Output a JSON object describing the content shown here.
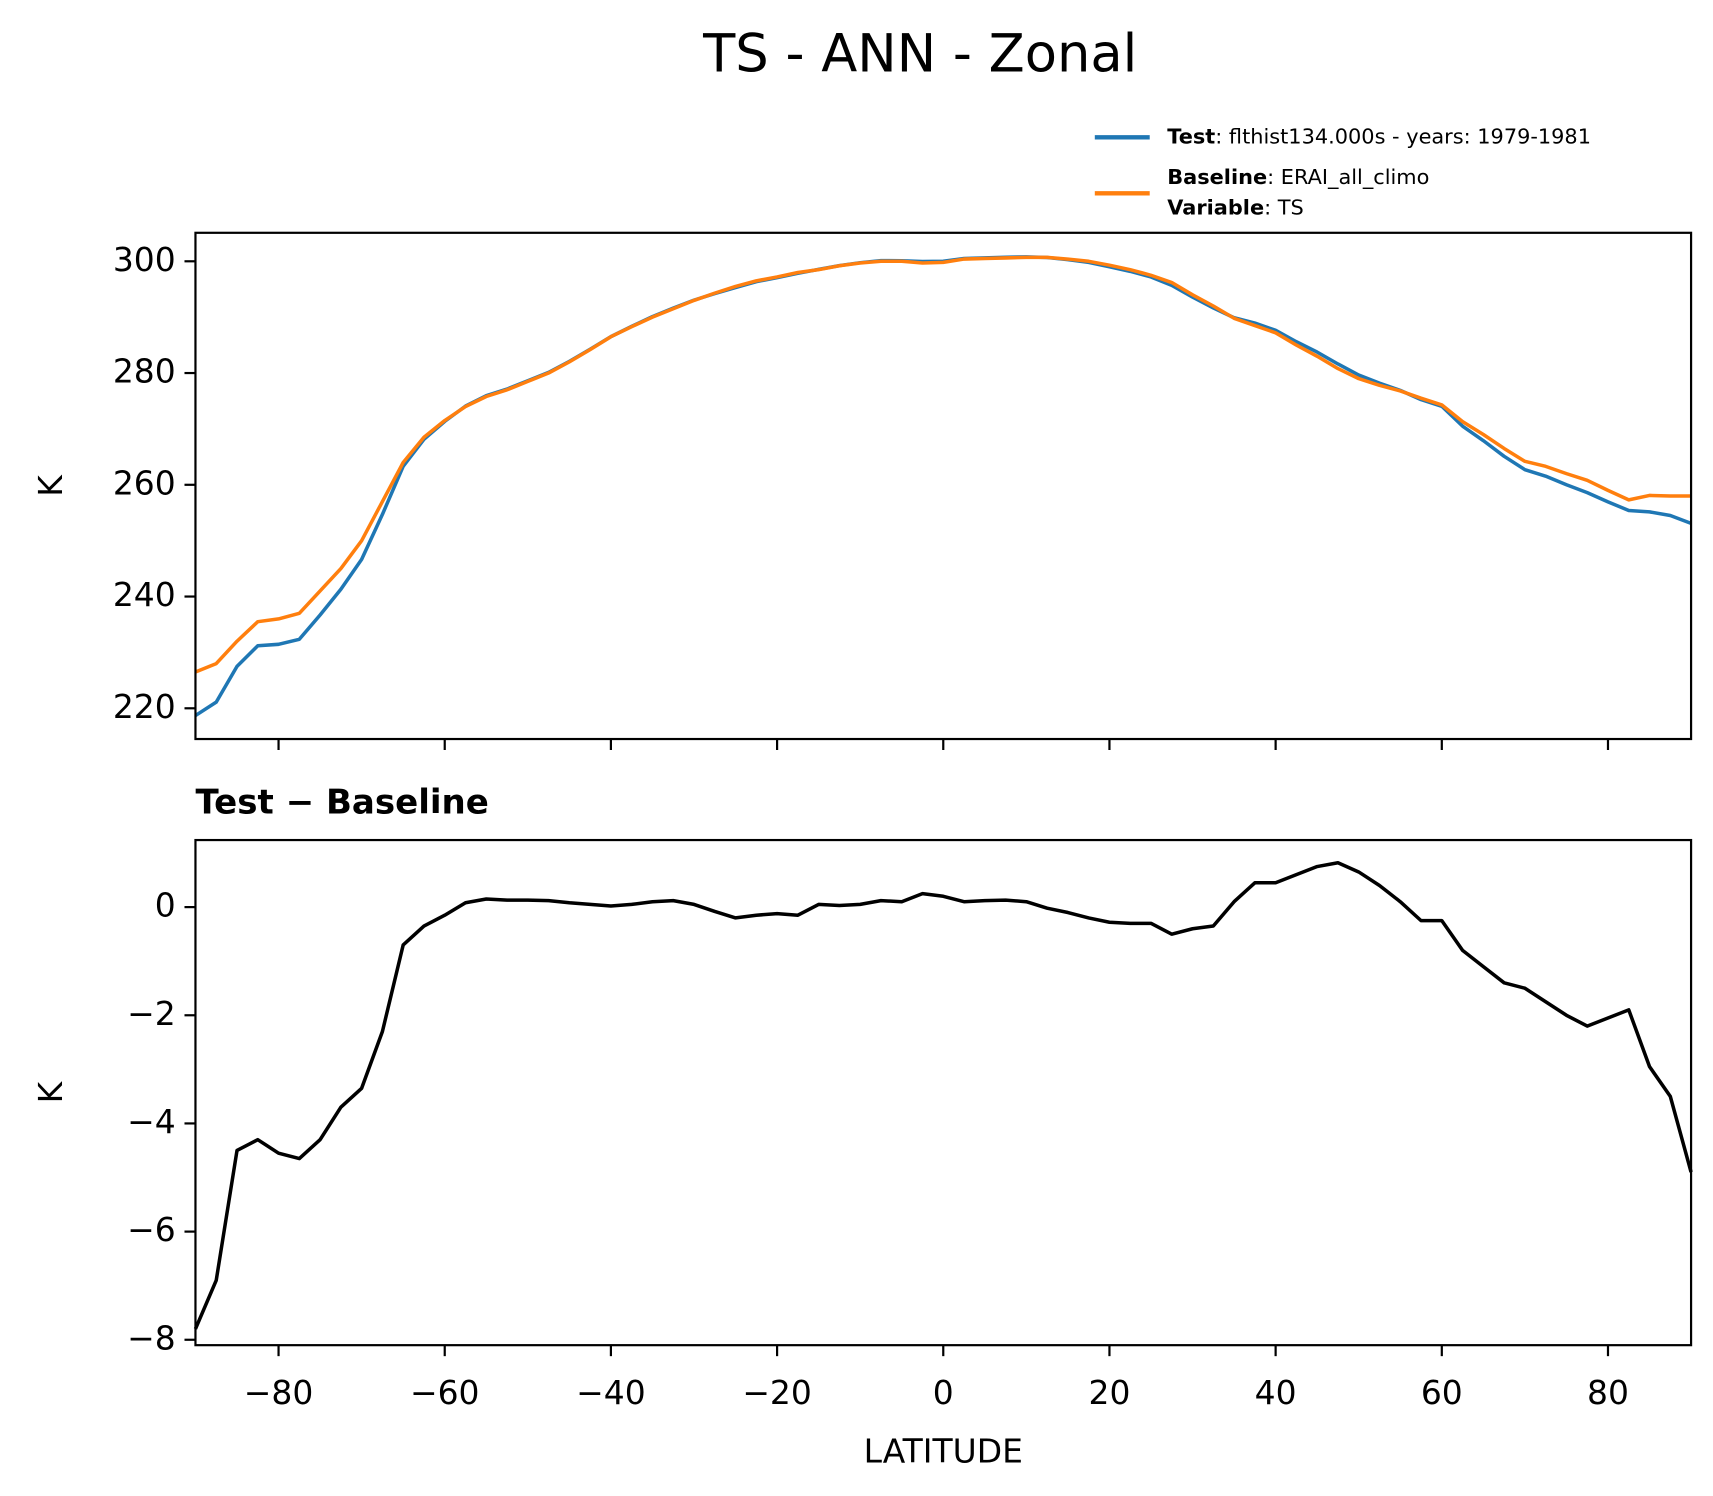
{
  "title": "TS - ANN - Zonal",
  "chart_data": [
    {
      "type": "line",
      "x": [
        -90,
        -87.5,
        -85,
        -82.5,
        -80,
        -77.5,
        -75,
        -72.5,
        -70,
        -67.5,
        -65,
        -62.5,
        -60,
        -57.5,
        -55,
        -52.5,
        -50,
        -47.5,
        -45,
        -42.5,
        -40,
        -37.5,
        -35,
        -32.5,
        -30,
        -27.5,
        -25,
        -22.5,
        -20,
        -17.5,
        -15,
        -12.5,
        -10,
        -7.5,
        -5,
        -2.5,
        0,
        2.5,
        5,
        7.5,
        10,
        12.5,
        15,
        17.5,
        20,
        22.5,
        25,
        27.5,
        30,
        32.5,
        35,
        37.5,
        40,
        42.5,
        45,
        47.5,
        50,
        52.5,
        55,
        57.5,
        60,
        62.5,
        65,
        67.5,
        70,
        72.5,
        75,
        77.5,
        80,
        82.5,
        85,
        87.5,
        90
      ],
      "series": [
        {
          "name": "Test",
          "detail": ": flthist134.000s - years: 1979-1981",
          "color": "#1f77b4",
          "values": [
            218.7,
            221.1,
            227.5,
            231.2,
            231.45,
            232.35,
            236.7,
            241.3,
            246.65,
            254.7,
            263.3,
            268.15,
            271.35,
            274.08,
            275.95,
            277.13,
            278.63,
            280.12,
            282.08,
            284.25,
            286.52,
            288.35,
            290.1,
            291.62,
            293.05,
            294.22,
            295.3,
            296.35,
            297.08,
            297.85,
            298.55,
            299.23,
            299.75,
            300.12,
            300.1,
            299.95,
            300,
            300.5,
            300.62,
            300.73,
            300.8,
            300.68,
            300.3,
            299.8,
            299.02,
            298.2,
            297.2,
            295.7,
            293.6,
            291.65,
            289.9,
            288.95,
            287.65,
            285.6,
            283.75,
            281.62,
            279.65,
            278.2,
            276.9,
            275.25,
            274.05,
            270.5,
            267.9,
            265.1,
            262.7,
            261.55,
            260,
            258.6,
            256.95,
            255.4,
            255.15,
            254.5,
            253.1
          ]
        },
        {
          "name": "Baseline",
          "detail": ": ERAI_all_climo",
          "color": "#ff7f0e",
          "values": [
            226.5,
            228,
            232,
            235.5,
            236,
            237,
            241,
            245,
            250,
            257,
            264,
            268.5,
            271.5,
            274,
            275.8,
            277,
            278.5,
            280,
            282,
            284.2,
            286.5,
            288.3,
            290,
            291.5,
            293,
            294.3,
            295.5,
            296.5,
            297.2,
            298,
            298.5,
            299.2,
            299.7,
            300,
            300,
            299.7,
            299.8,
            300.4,
            300.5,
            300.6,
            300.7,
            300.7,
            300.4,
            300,
            299.3,
            298.5,
            297.5,
            296.2,
            294,
            292,
            289.8,
            288.5,
            287.2,
            285,
            283,
            280.8,
            279,
            277.8,
            276.8,
            275.5,
            274.3,
            271.3,
            269,
            266.5,
            264.2,
            263.3,
            262,
            260.8,
            259,
            257.3,
            258.1,
            258,
            258
          ]
        }
      ],
      "legend_note": {
        "name": "Variable",
        "detail": ": TS"
      },
      "legend": "upper right",
      "ylabel": "K",
      "xlim": [
        -90,
        90
      ],
      "xticks": [
        -80,
        -60,
        -40,
        -20,
        0,
        20,
        40,
        60,
        80
      ],
      "ylim": [
        214.5,
        305.1
      ],
      "yticks": [
        220,
        240,
        260,
        280,
        300
      ]
    },
    {
      "type": "line",
      "title": "Test − Baseline",
      "x": [
        -90,
        -87.5,
        -85,
        -82.5,
        -80,
        -77.5,
        -75,
        -72.5,
        -70,
        -67.5,
        -65,
        -62.5,
        -60,
        -57.5,
        -55,
        -52.5,
        -50,
        -47.5,
        -45,
        -42.5,
        -40,
        -37.5,
        -35,
        -32.5,
        -30,
        -27.5,
        -25,
        -22.5,
        -20,
        -17.5,
        -15,
        -12.5,
        -10,
        -7.5,
        -5,
        -2.5,
        0,
        2.5,
        5,
        7.5,
        10,
        12.5,
        15,
        17.5,
        20,
        22.5,
        25,
        27.5,
        30,
        32.5,
        35,
        37.5,
        40,
        42.5,
        45,
        47.5,
        50,
        52.5,
        55,
        57.5,
        60,
        62.5,
        65,
        67.5,
        70,
        72.5,
        75,
        77.5,
        80,
        82.5,
        85,
        87.5,
        90
      ],
      "color": "#000000",
      "values": [
        -7.8,
        -6.9,
        -4.5,
        -4.3,
        -4.55,
        -4.65,
        -4.3,
        -3.7,
        -3.35,
        -2.3,
        -0.7,
        -0.35,
        -0.15,
        0.08,
        0.15,
        0.13,
        0.13,
        0.12,
        0.08,
        0.05,
        0.02,
        0.05,
        0.1,
        0.12,
        0.05,
        -0.08,
        -0.2,
        -0.15,
        -0.12,
        -0.15,
        0.05,
        0.03,
        0.05,
        0.12,
        0.1,
        0.25,
        0.2,
        0.1,
        0.12,
        0.13,
        0.1,
        -0.02,
        -0.1,
        -0.2,
        -0.28,
        -0.3,
        -0.3,
        -0.5,
        -0.4,
        -0.35,
        0.1,
        0.45,
        0.45,
        0.6,
        0.75,
        0.82,
        0.65,
        0.4,
        0.1,
        -0.25,
        -0.25,
        -0.8,
        -1.1,
        -1.4,
        -1.5,
        -1.75,
        -2.0,
        -2.2,
        -2.05,
        -1.9,
        -2.95,
        -3.5,
        -4.9
      ],
      "xlabel": "LATITUDE",
      "ylabel": "K",
      "xlim": [
        -90,
        90
      ],
      "xticks": [
        {
          "value": -80,
          "label": "−80"
        },
        {
          "value": -60,
          "label": "−60"
        },
        {
          "value": -40,
          "label": "−40"
        },
        {
          "value": -20,
          "label": "−20"
        },
        0,
        20,
        40,
        60,
        80
      ],
      "ylim": [
        -8.1,
        1.24
      ],
      "yticks": [
        {
          "value": -8,
          "label": "−8"
        },
        {
          "value": -6,
          "label": "−6"
        },
        {
          "value": -4,
          "label": "−4"
        },
        {
          "value": -2,
          "label": "−2"
        },
        0
      ]
    }
  ]
}
